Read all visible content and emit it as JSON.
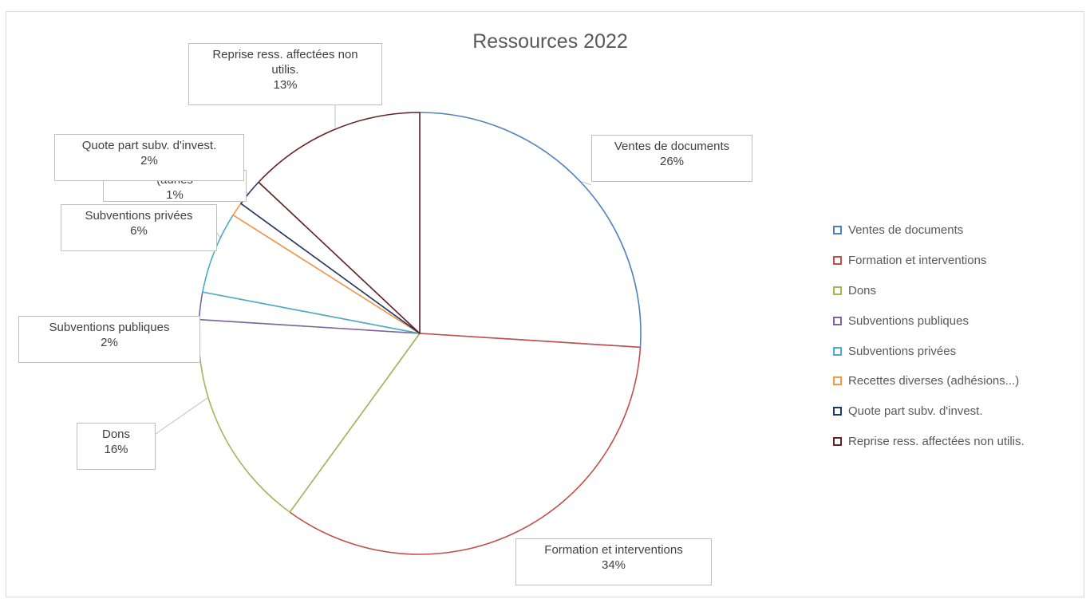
{
  "chart_data": {
    "type": "pie",
    "title": "Ressources 2022",
    "categories": [
      "Ventes de documents",
      "Formation et interventions",
      "Dons",
      "Subventions publiques",
      "Subventions privées",
      "Recettes diverses (adhésions...)",
      "Quote part subv. d'invest.",
      "Reprise ress. affectées non utilis."
    ],
    "values": [
      26,
      34,
      16,
      2,
      6,
      1,
      2,
      13
    ],
    "data_labels": [
      {
        "lines": [
          "Ventes de documents"
        ],
        "pct": "26%"
      },
      {
        "lines": [
          "Formation et interventions"
        ],
        "pct": "34%"
      },
      {
        "lines": [
          "Dons"
        ],
        "pct": "16%"
      },
      {
        "lines": [
          "Subventions publiques"
        ],
        "pct": "2%"
      },
      {
        "lines": [
          "Subventions privées"
        ],
        "pct": "6%"
      },
      {
        "lines": [
          "(adhés"
        ],
        "pct": "1%"
      },
      {
        "lines": [
          "Quote part subv. d'invest."
        ],
        "pct": "2%"
      },
      {
        "lines": [
          "Reprise ress. affectées non",
          "utilis."
        ],
        "pct": "13%"
      }
    ],
    "colors": [
      "#4f81bd",
      "#c0504d",
      "#9bbb59",
      "#8064a2",
      "#4bacc6",
      "#f79646",
      "#1f3864",
      "#632523"
    ],
    "legend": {
      "position": "right",
      "entries": [
        "Ventes de documents",
        "Formation et interventions",
        "Dons",
        "Subventions publiques",
        "Subventions privées",
        "Recettes diverses (adhésions...)",
        "Quote part subv. d'invest.",
        "Reprise ress. affectées non utilis."
      ]
    }
  }
}
